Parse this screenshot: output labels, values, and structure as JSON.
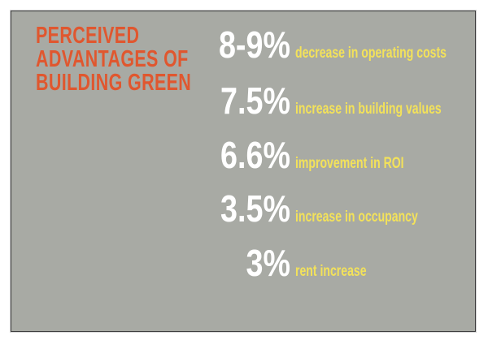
{
  "title": {
    "lines": [
      "PERCEIVED",
      "ADVANTAGES OF",
      "BUILDING GREEN"
    ]
  },
  "stats": [
    {
      "value": "8-9%",
      "label": "decrease in operating costs"
    },
    {
      "value": "7.5%",
      "label": "increase in building values"
    },
    {
      "value": "6.6%",
      "label": "improvement in ROI"
    },
    {
      "value": "3.5%",
      "label": "increase in occupancy"
    },
    {
      "value": "3%",
      "label": "rent increase"
    }
  ],
  "colors": {
    "background": "#a8aaa4",
    "title": "#e0572f",
    "value": "#ffffff",
    "label": "#f3e25a"
  }
}
